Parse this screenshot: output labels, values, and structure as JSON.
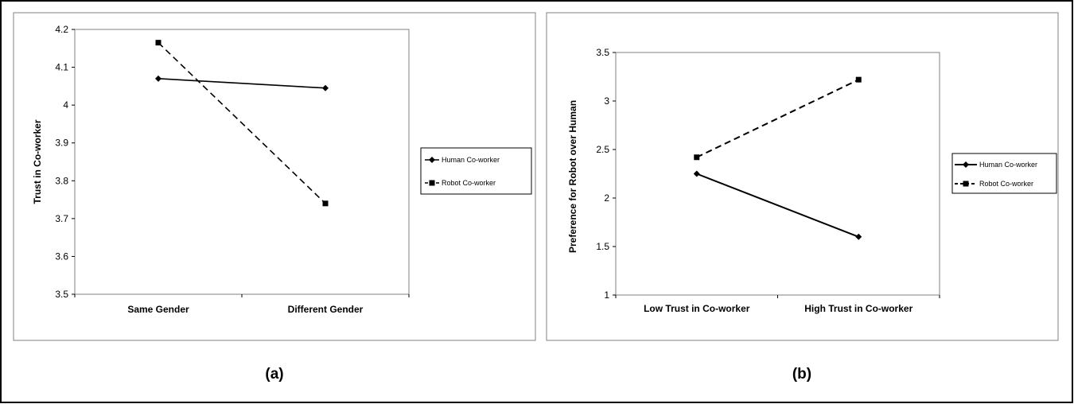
{
  "chart_data": [
    {
      "type": "line",
      "panel_label": "(a)",
      "categories": [
        "Same Gender",
        "Different Gender"
      ],
      "ylabel": "Trust in Co-worker",
      "ylim": [
        3.5,
        4.2
      ],
      "yticks": [
        "3.5",
        "3.6",
        "3.7",
        "3.8",
        "3.9",
        "4",
        "4.1",
        "4.2"
      ],
      "grid": false,
      "legend_position": "right",
      "series": [
        {
          "name": "Human Co-worker",
          "values": [
            4.07,
            4.045
          ],
          "style": "solid",
          "marker": "diamond"
        },
        {
          "name": "Robot Co-worker",
          "values": [
            4.165,
            3.74
          ],
          "style": "dashed",
          "marker": "square"
        }
      ]
    },
    {
      "type": "line",
      "panel_label": "(b)",
      "categories": [
        "Low Trust in Co-worker",
        "High Trust in Co-worker"
      ],
      "ylabel": "Preference for Robot over Human",
      "ylim": [
        1,
        3.5
      ],
      "yticks": [
        "1",
        "1.5",
        "2",
        "2.5",
        "3",
        "3.5"
      ],
      "grid": false,
      "legend_position": "right",
      "series": [
        {
          "name": "Human Co-worker",
          "values": [
            2.25,
            1.6
          ],
          "style": "solid",
          "marker": "diamond"
        },
        {
          "name": "Robot Co-worker",
          "values": [
            2.42,
            3.22
          ],
          "style": "dashed",
          "marker": "square"
        }
      ]
    }
  ]
}
